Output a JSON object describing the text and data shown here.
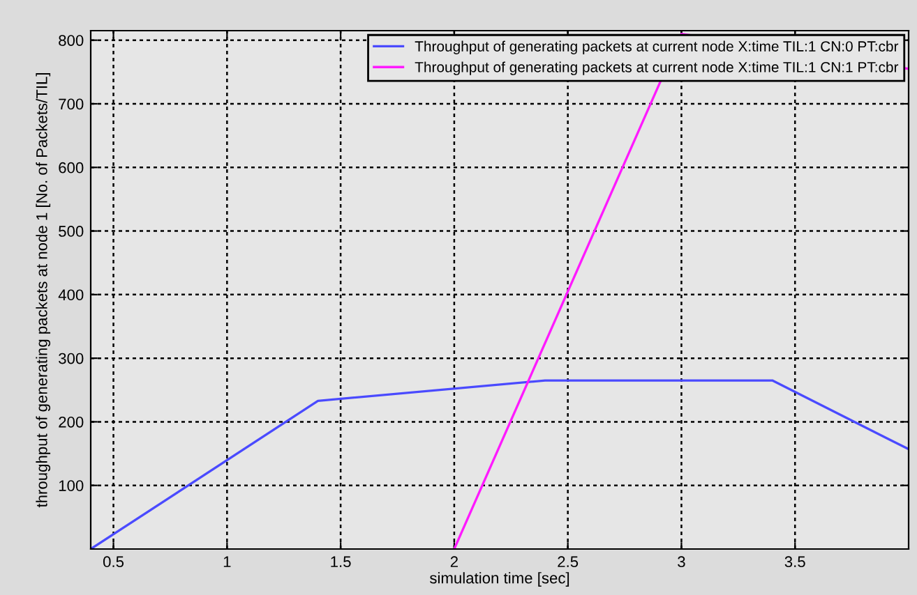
{
  "chart_data": {
    "type": "line",
    "xlabel": "simulation time [sec]",
    "ylabel": "throughput of generating packets at node 1 [No. of Packets/TIL]",
    "series": [
      {
        "name": "Throughput of generating packets at current node X:time TIL:1 CN:0 PT:cbr",
        "color": "#4a4aff",
        "x": [
          0.4,
          1.4,
          2.4,
          3.4,
          4.0
        ],
        "values": [
          0,
          233,
          265,
          265,
          157
        ]
      },
      {
        "name": "Throughput of generating packets at current node X:time TIL:1 CN:1 PT:cbr",
        "color": "#ff1aff",
        "x": [
          2.0,
          3.0,
          4.0
        ],
        "values": [
          0,
          810,
          755
        ]
      }
    ],
    "xlim": [
      0.4,
      4.0
    ],
    "ylim": [
      0,
      815
    ],
    "xticks": [
      0.5,
      1,
      1.5,
      2,
      2.5,
      3,
      3.5
    ],
    "yticks": [
      100,
      200,
      300,
      400,
      500,
      600,
      700,
      800
    ],
    "grid": true,
    "legend": "top right",
    "marker": "none",
    "line_style": "solid"
  }
}
